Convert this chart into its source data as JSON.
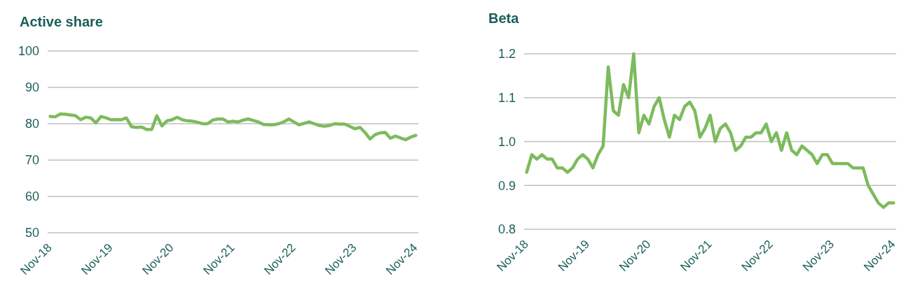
{
  "chart_data": [
    {
      "type": "line",
      "title": "Active share",
      "categories": [
        "Nov-18",
        null,
        null,
        null,
        null,
        null,
        null,
        null,
        null,
        null,
        null,
        null,
        "Nov-19",
        null,
        null,
        null,
        null,
        null,
        null,
        null,
        null,
        null,
        null,
        null,
        "Nov-20",
        null,
        null,
        null,
        null,
        null,
        null,
        null,
        null,
        null,
        null,
        null,
        "Nov-21",
        null,
        null,
        null,
        null,
        null,
        null,
        null,
        null,
        null,
        null,
        null,
        "Nov-22",
        null,
        null,
        null,
        null,
        null,
        null,
        null,
        null,
        null,
        null,
        null,
        "Nov-23",
        null,
        null,
        null,
        null,
        null,
        null,
        null,
        null,
        null,
        null,
        null,
        "Nov-24"
      ],
      "series": [
        {
          "color": "#7dbb5e",
          "values": [
            82.0,
            81.9,
            82.7,
            82.6,
            82.4,
            82.2,
            81.1,
            81.8,
            81.6,
            80.2,
            82.0,
            81.6,
            81.1,
            81.1,
            81.1,
            81.6,
            79.2,
            79.0,
            79.1,
            78.4,
            78.4,
            82.2,
            79.4,
            80.8,
            81.1,
            81.8,
            81.1,
            80.8,
            80.7,
            80.4,
            80.0,
            80.0,
            81.0,
            81.3,
            81.3,
            80.5,
            80.7,
            80.5,
            81.0,
            81.3,
            80.9,
            80.5,
            79.8,
            79.7,
            79.7,
            80.0,
            80.5,
            81.3,
            80.5,
            79.7,
            80.1,
            80.5,
            80.0,
            79.5,
            79.3,
            79.5,
            80.0,
            79.9,
            79.9,
            79.3,
            78.6,
            79.0,
            77.6,
            75.8,
            77.0,
            77.5,
            77.6,
            76.0,
            76.6,
            76.1,
            75.6,
            76.3,
            76.8
          ]
        }
      ],
      "ylim": [
        50,
        100
      ],
      "yticks": [
        50,
        60,
        70,
        80,
        90,
        100
      ],
      "grid": "y"
    },
    {
      "type": "line",
      "title": "Beta",
      "categories": [
        "Nov-18",
        null,
        null,
        null,
        null,
        null,
        null,
        null,
        null,
        null,
        null,
        null,
        "Nov-19",
        null,
        null,
        null,
        null,
        null,
        null,
        null,
        null,
        null,
        null,
        null,
        "Nov-20",
        null,
        null,
        null,
        null,
        null,
        null,
        null,
        null,
        null,
        null,
        null,
        "Nov-21",
        null,
        null,
        null,
        null,
        null,
        null,
        null,
        null,
        null,
        null,
        null,
        "Nov-22",
        null,
        null,
        null,
        null,
        null,
        null,
        null,
        null,
        null,
        null,
        null,
        "Nov-23",
        null,
        null,
        null,
        null,
        null,
        null,
        null,
        null,
        null,
        null,
        null,
        "Nov-24"
      ],
      "series": [
        {
          "color": "#7dbb5e",
          "values": [
            0.93,
            0.97,
            0.96,
            0.97,
            0.96,
            0.96,
            0.94,
            0.94,
            0.93,
            0.94,
            0.96,
            0.97,
            0.96,
            0.94,
            0.97,
            0.99,
            1.17,
            1.07,
            1.06,
            1.13,
            1.1,
            1.2,
            1.02,
            1.06,
            1.04,
            1.08,
            1.1,
            1.05,
            1.01,
            1.06,
            1.05,
            1.08,
            1.09,
            1.07,
            1.01,
            1.03,
            1.06,
            1.0,
            1.03,
            1.04,
            1.02,
            0.98,
            0.99,
            1.01,
            1.01,
            1.02,
            1.02,
            1.04,
            1.0,
            1.02,
            0.98,
            1.02,
            0.98,
            0.97,
            0.99,
            0.98,
            0.97,
            0.95,
            0.97,
            0.97,
            0.95,
            0.95,
            0.95,
            0.95,
            0.94,
            0.94,
            0.94,
            0.9,
            0.88,
            0.86,
            0.85,
            0.86,
            0.86
          ]
        }
      ],
      "ylim": [
        0.8,
        1.2
      ],
      "yticks": [
        {
          "value": 0.8,
          "label": "0.8"
        },
        {
          "value": 0.9,
          "label": "0.9"
        },
        {
          "value": 1.0,
          "label": "1.0"
        },
        {
          "value": 1.1,
          "label": "1.1"
        },
        {
          "value": 1.2,
          "label": "1.2"
        }
      ],
      "grid": "y"
    }
  ]
}
